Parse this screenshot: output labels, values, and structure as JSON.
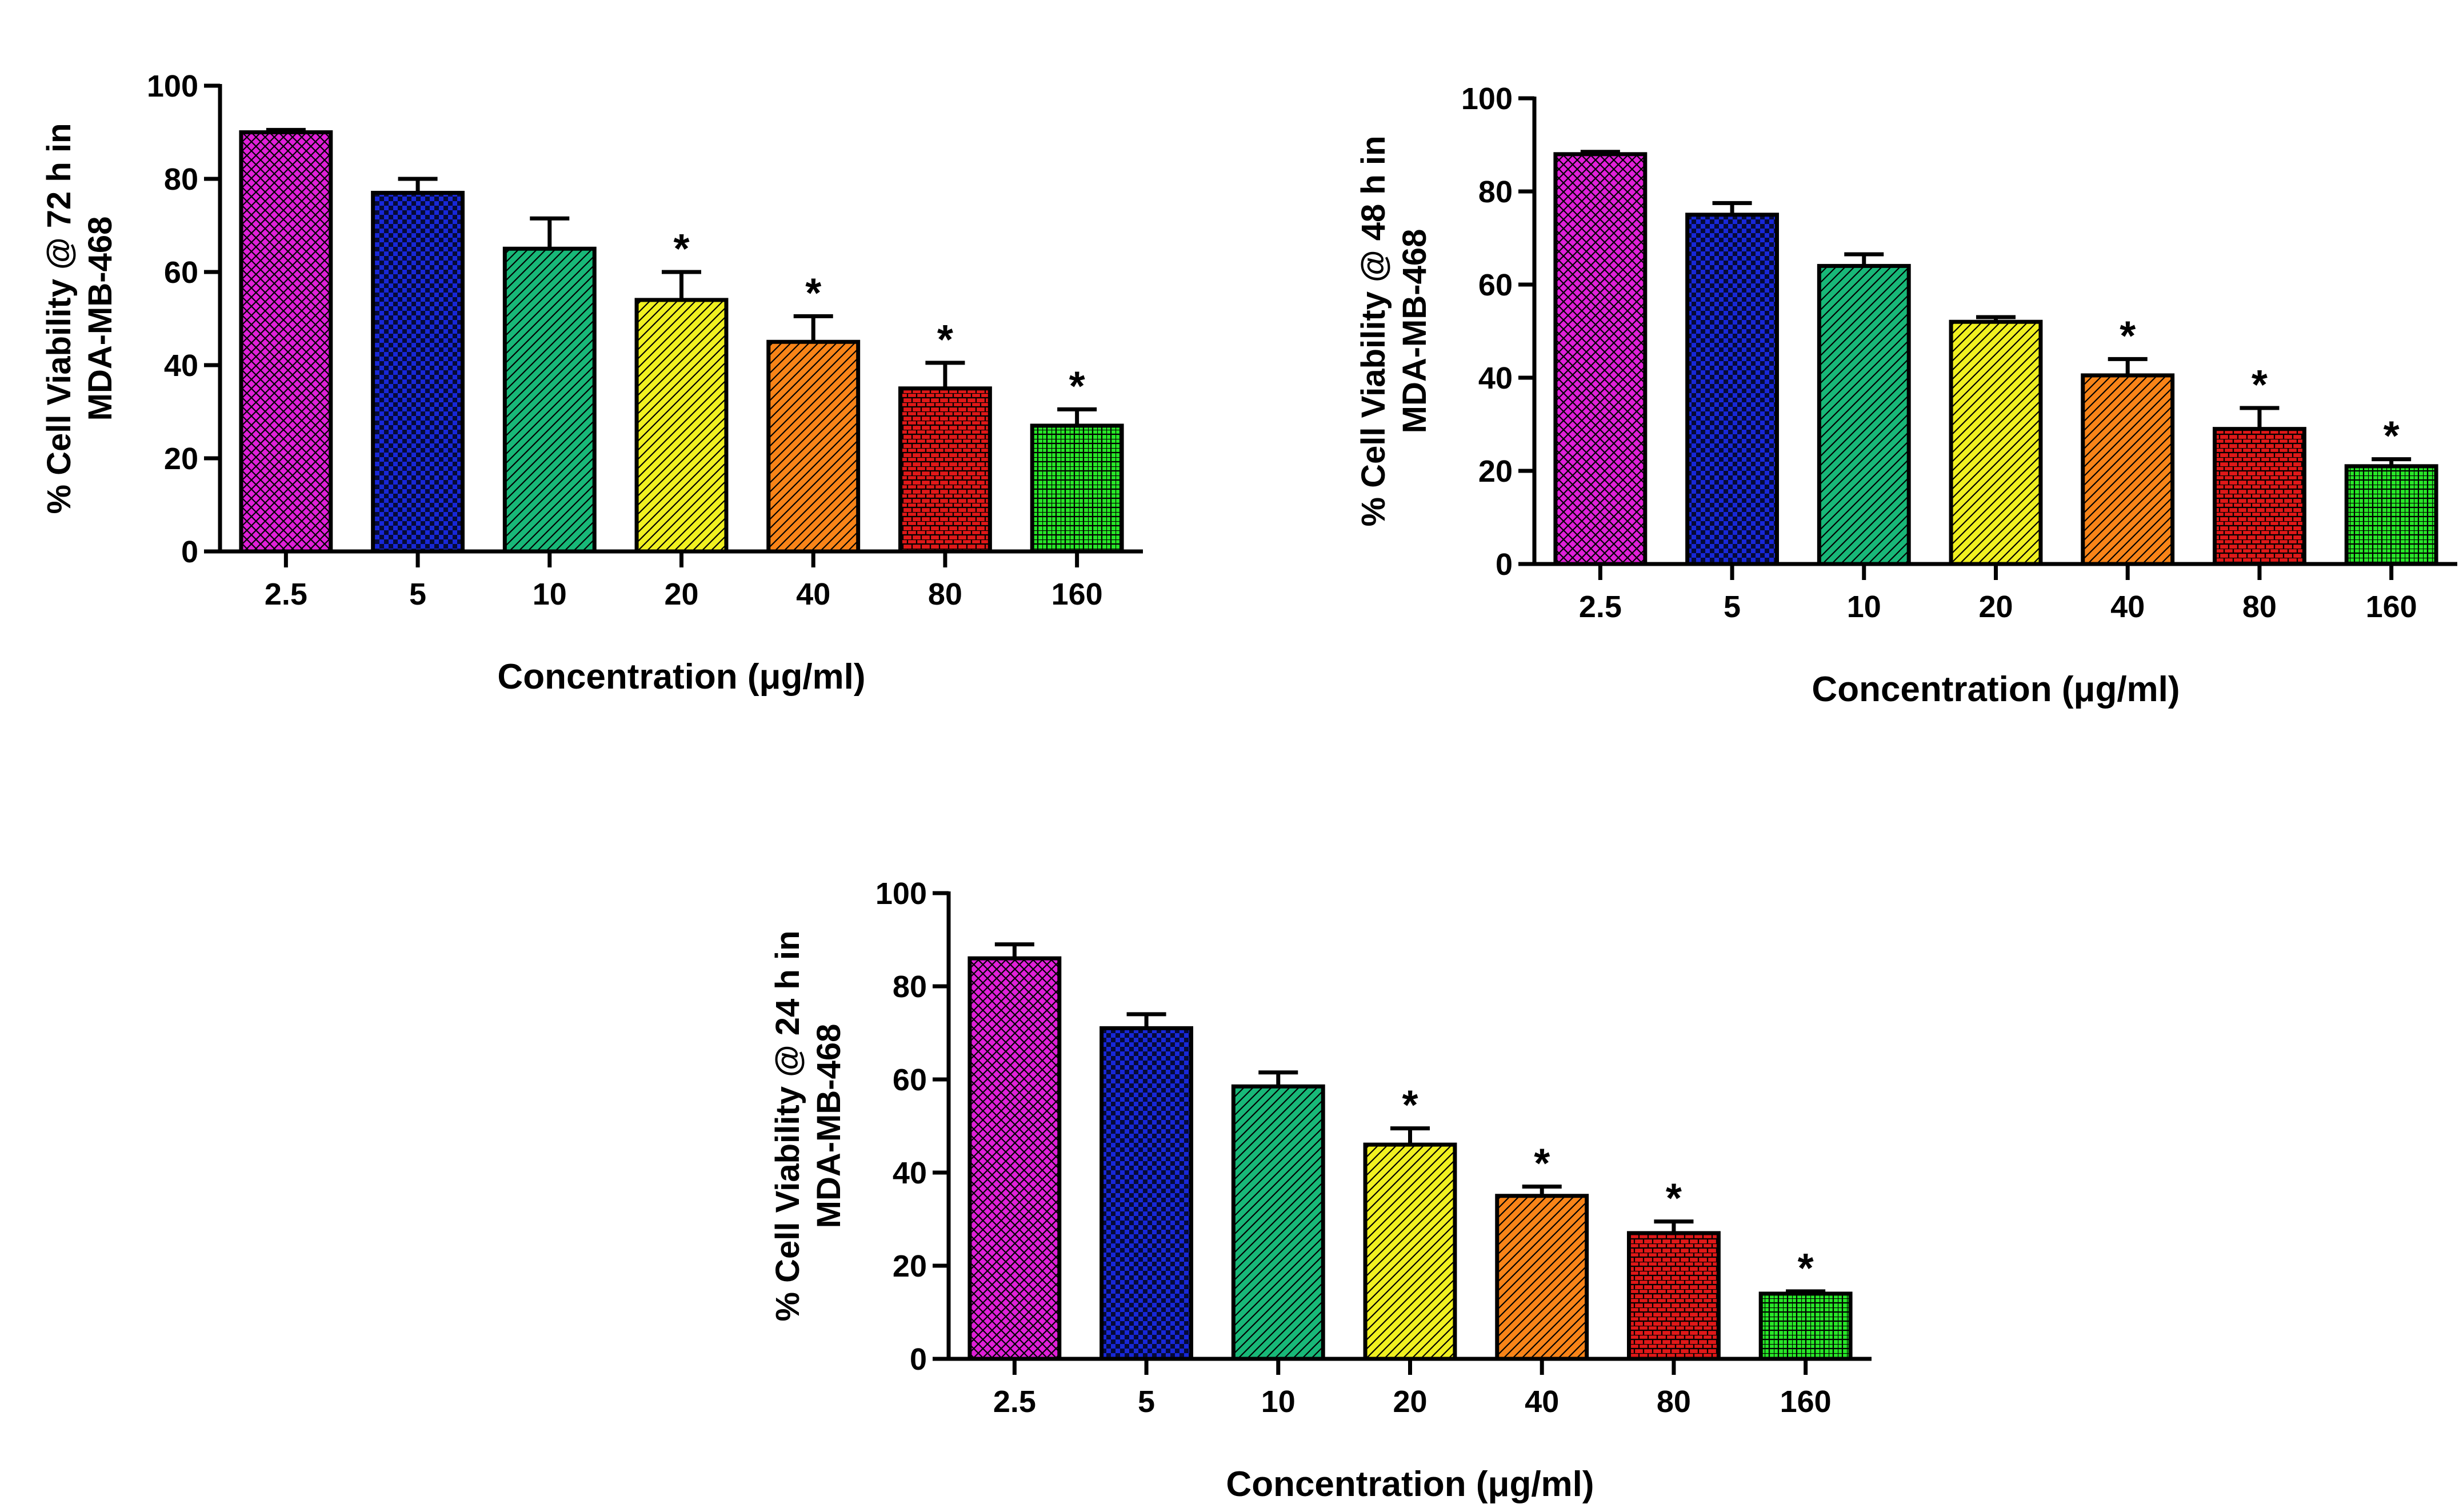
{
  "chart_data": [
    {
      "type": "bar",
      "ylabel_line1": "%  Cell Viability @ 72 h in",
      "ylabel_line2": "MDA-MB-468",
      "xlabel": "Concentration (μg/ml)",
      "categories": [
        "2.5",
        "5",
        "10",
        "20",
        "40",
        "80",
        "160"
      ],
      "values": [
        90,
        77,
        65,
        54,
        45,
        35,
        27
      ],
      "errors": [
        0.5,
        3,
        6.5,
        6,
        5.5,
        5.5,
        3.5
      ],
      "significance": [
        "",
        "",
        "",
        "*",
        "*",
        "*",
        "*"
      ],
      "ylim": [
        0,
        100
      ],
      "yticks": [
        "0",
        "20",
        "40",
        "60",
        "80",
        "100"
      ],
      "grid": false,
      "colors": [
        "#e020d8",
        "#1828d8",
        "#18b878",
        "#f0f020",
        "#f88418",
        "#e01818",
        "#28e828"
      ]
    },
    {
      "type": "bar",
      "ylabel_line1": "%  Cell Viability @ 48 h in",
      "ylabel_line2": "MDA-MB-468",
      "xlabel": "Concentration (μg/ml)",
      "categories": [
        "2.5",
        "5",
        "10",
        "20",
        "40",
        "80",
        "160"
      ],
      "values": [
        88,
        75,
        64,
        52,
        40.5,
        29,
        21
      ],
      "errors": [
        0.5,
        2.5,
        2.5,
        1,
        3.5,
        4.5,
        1.5
      ],
      "significance": [
        "",
        "",
        "",
        "",
        "*",
        "*",
        "*"
      ],
      "ylim": [
        0,
        100
      ],
      "yticks": [
        "0",
        "20",
        "40",
        "60",
        "80",
        "100"
      ],
      "grid": false,
      "colors": [
        "#e020d8",
        "#1828d8",
        "#18b878",
        "#f0f020",
        "#f88418",
        "#e01818",
        "#28e828"
      ]
    },
    {
      "type": "bar",
      "ylabel_line1": "%  Cell Viability @ 24 h in",
      "ylabel_line2": "MDA-MB-468",
      "xlabel": "Concentration (μg/ml)",
      "categories": [
        "2.5",
        "5",
        "10",
        "20",
        "40",
        "80",
        "160"
      ],
      "values": [
        86,
        71,
        58.5,
        46,
        35,
        27,
        14
      ],
      "errors": [
        3,
        3,
        3,
        3.5,
        2,
        2.5,
        0.5
      ],
      "significance": [
        "",
        "",
        "",
        "*",
        "*",
        "*",
        "*"
      ],
      "ylim": [
        0,
        100
      ],
      "yticks": [
        "0",
        "20",
        "40",
        "60",
        "80",
        "100"
      ],
      "grid": false,
      "colors": [
        "#e020d8",
        "#1828d8",
        "#18b878",
        "#f0f020",
        "#f88418",
        "#e01818",
        "#28e828"
      ]
    }
  ]
}
